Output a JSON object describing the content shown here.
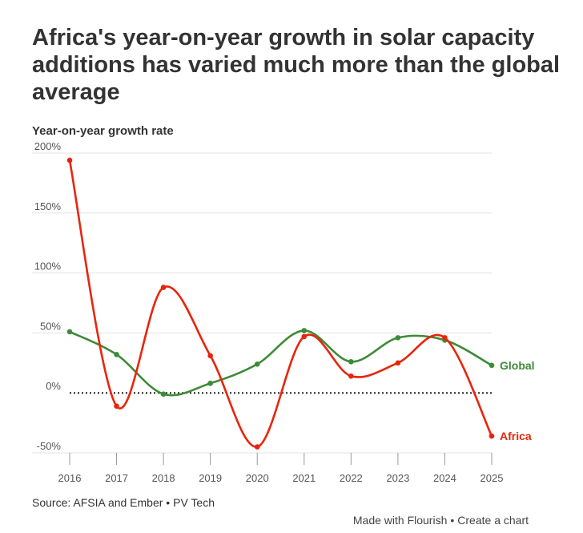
{
  "chart_data": {
    "type": "line",
    "title": "Africa's year-on-year growth in solar capacity additions has varied much more than the global average",
    "ylabel": "Year-on-year growth rate",
    "xlabel": "",
    "x": [
      "2016",
      "2017",
      "2018",
      "2019",
      "2020",
      "2021",
      "2022",
      "2023",
      "2024",
      "2025"
    ],
    "ylim": [
      -50,
      200
    ],
    "yticks": [
      200,
      150,
      100,
      50,
      0,
      -50
    ],
    "ytick_labels": [
      "200%",
      "150%",
      "100%",
      "50%",
      "0%",
      "-50%"
    ],
    "grid": true,
    "reference_line": {
      "value": 0,
      "style": "dotted"
    },
    "series": [
      {
        "name": "Global",
        "color": "#3d8b37",
        "values": [
          51,
          32,
          -1,
          8,
          24,
          52,
          26,
          46,
          44,
          23
        ]
      },
      {
        "name": "Africa",
        "color": "#e8250c",
        "values": [
          194,
          -11,
          88,
          31,
          -45,
          47,
          14,
          25,
          46,
          -36
        ]
      }
    ]
  },
  "footer": {
    "source": "Source: AFSIA and Ember • PV Tech",
    "made_with": "Made with Flourish",
    "separator": "•",
    "create_chart": "Create a chart"
  }
}
